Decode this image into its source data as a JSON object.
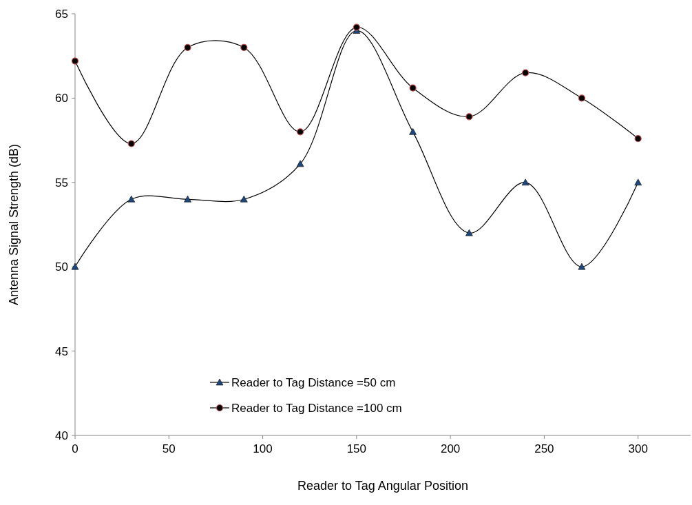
{
  "chart_data": {
    "type": "line",
    "xlabel": "Reader to Tag Angular Position",
    "ylabel": "Antenna Signal Strength (dB)",
    "x": [
      0,
      30,
      60,
      90,
      120,
      150,
      180,
      210,
      240,
      270,
      300
    ],
    "series": [
      {
        "name": "Reader to Tag Distance =50 cm",
        "color": "#1f497d",
        "marker": "triangle",
        "values": [
          50,
          54,
          54,
          54,
          56.1,
          64,
          58,
          52,
          55,
          50,
          55
        ]
      },
      {
        "name": "Reader to Tag Distance =100 cm",
        "color": "#c0504d",
        "marker": "circle",
        "values": [
          62.2,
          57.3,
          63,
          63,
          58,
          64.2,
          60.6,
          58.9,
          61.5,
          60,
          57.6
        ]
      }
    ],
    "xlim": [
      0,
      328
    ],
    "xticks": [
      0,
      50,
      100,
      150,
      200,
      250,
      300
    ],
    "ylim": [
      40,
      65
    ],
    "yticks": [
      40,
      45,
      50,
      55,
      60,
      65
    ],
    "grid": false,
    "legend": "bottom",
    "line_style": "solid"
  }
}
